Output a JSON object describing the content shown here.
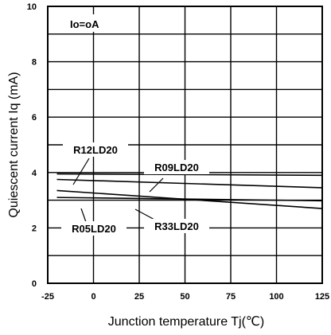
{
  "chart_data": {
    "type": "line",
    "title": "",
    "xlabel": "Junction temperature Tj(℃)",
    "ylabel": "Quiescent current Iq (mA)",
    "xlim": [
      -25,
      125
    ],
    "ylim": [
      0,
      10
    ],
    "xticks": [
      "-25",
      "0",
      "25",
      "50",
      "75",
      "100",
      "125"
    ],
    "yticks": [
      "0",
      "2",
      "4",
      "6",
      "8",
      "10"
    ],
    "grid": true,
    "annotation": "Io=oA",
    "series": [
      {
        "name": "R12LD20",
        "x": [
          -20,
          125
        ],
        "y": [
          3.95,
          3.9
        ]
      },
      {
        "name": "R09LD20",
        "x": [
          -20,
          125
        ],
        "y": [
          3.75,
          3.45
        ]
      },
      {
        "name": "R05LD20",
        "x": [
          -20,
          125
        ],
        "y": [
          3.1,
          2.98
        ]
      },
      {
        "name": "R33LD20",
        "x": [
          -20,
          125
        ],
        "y": [
          3.35,
          2.7
        ]
      }
    ]
  }
}
